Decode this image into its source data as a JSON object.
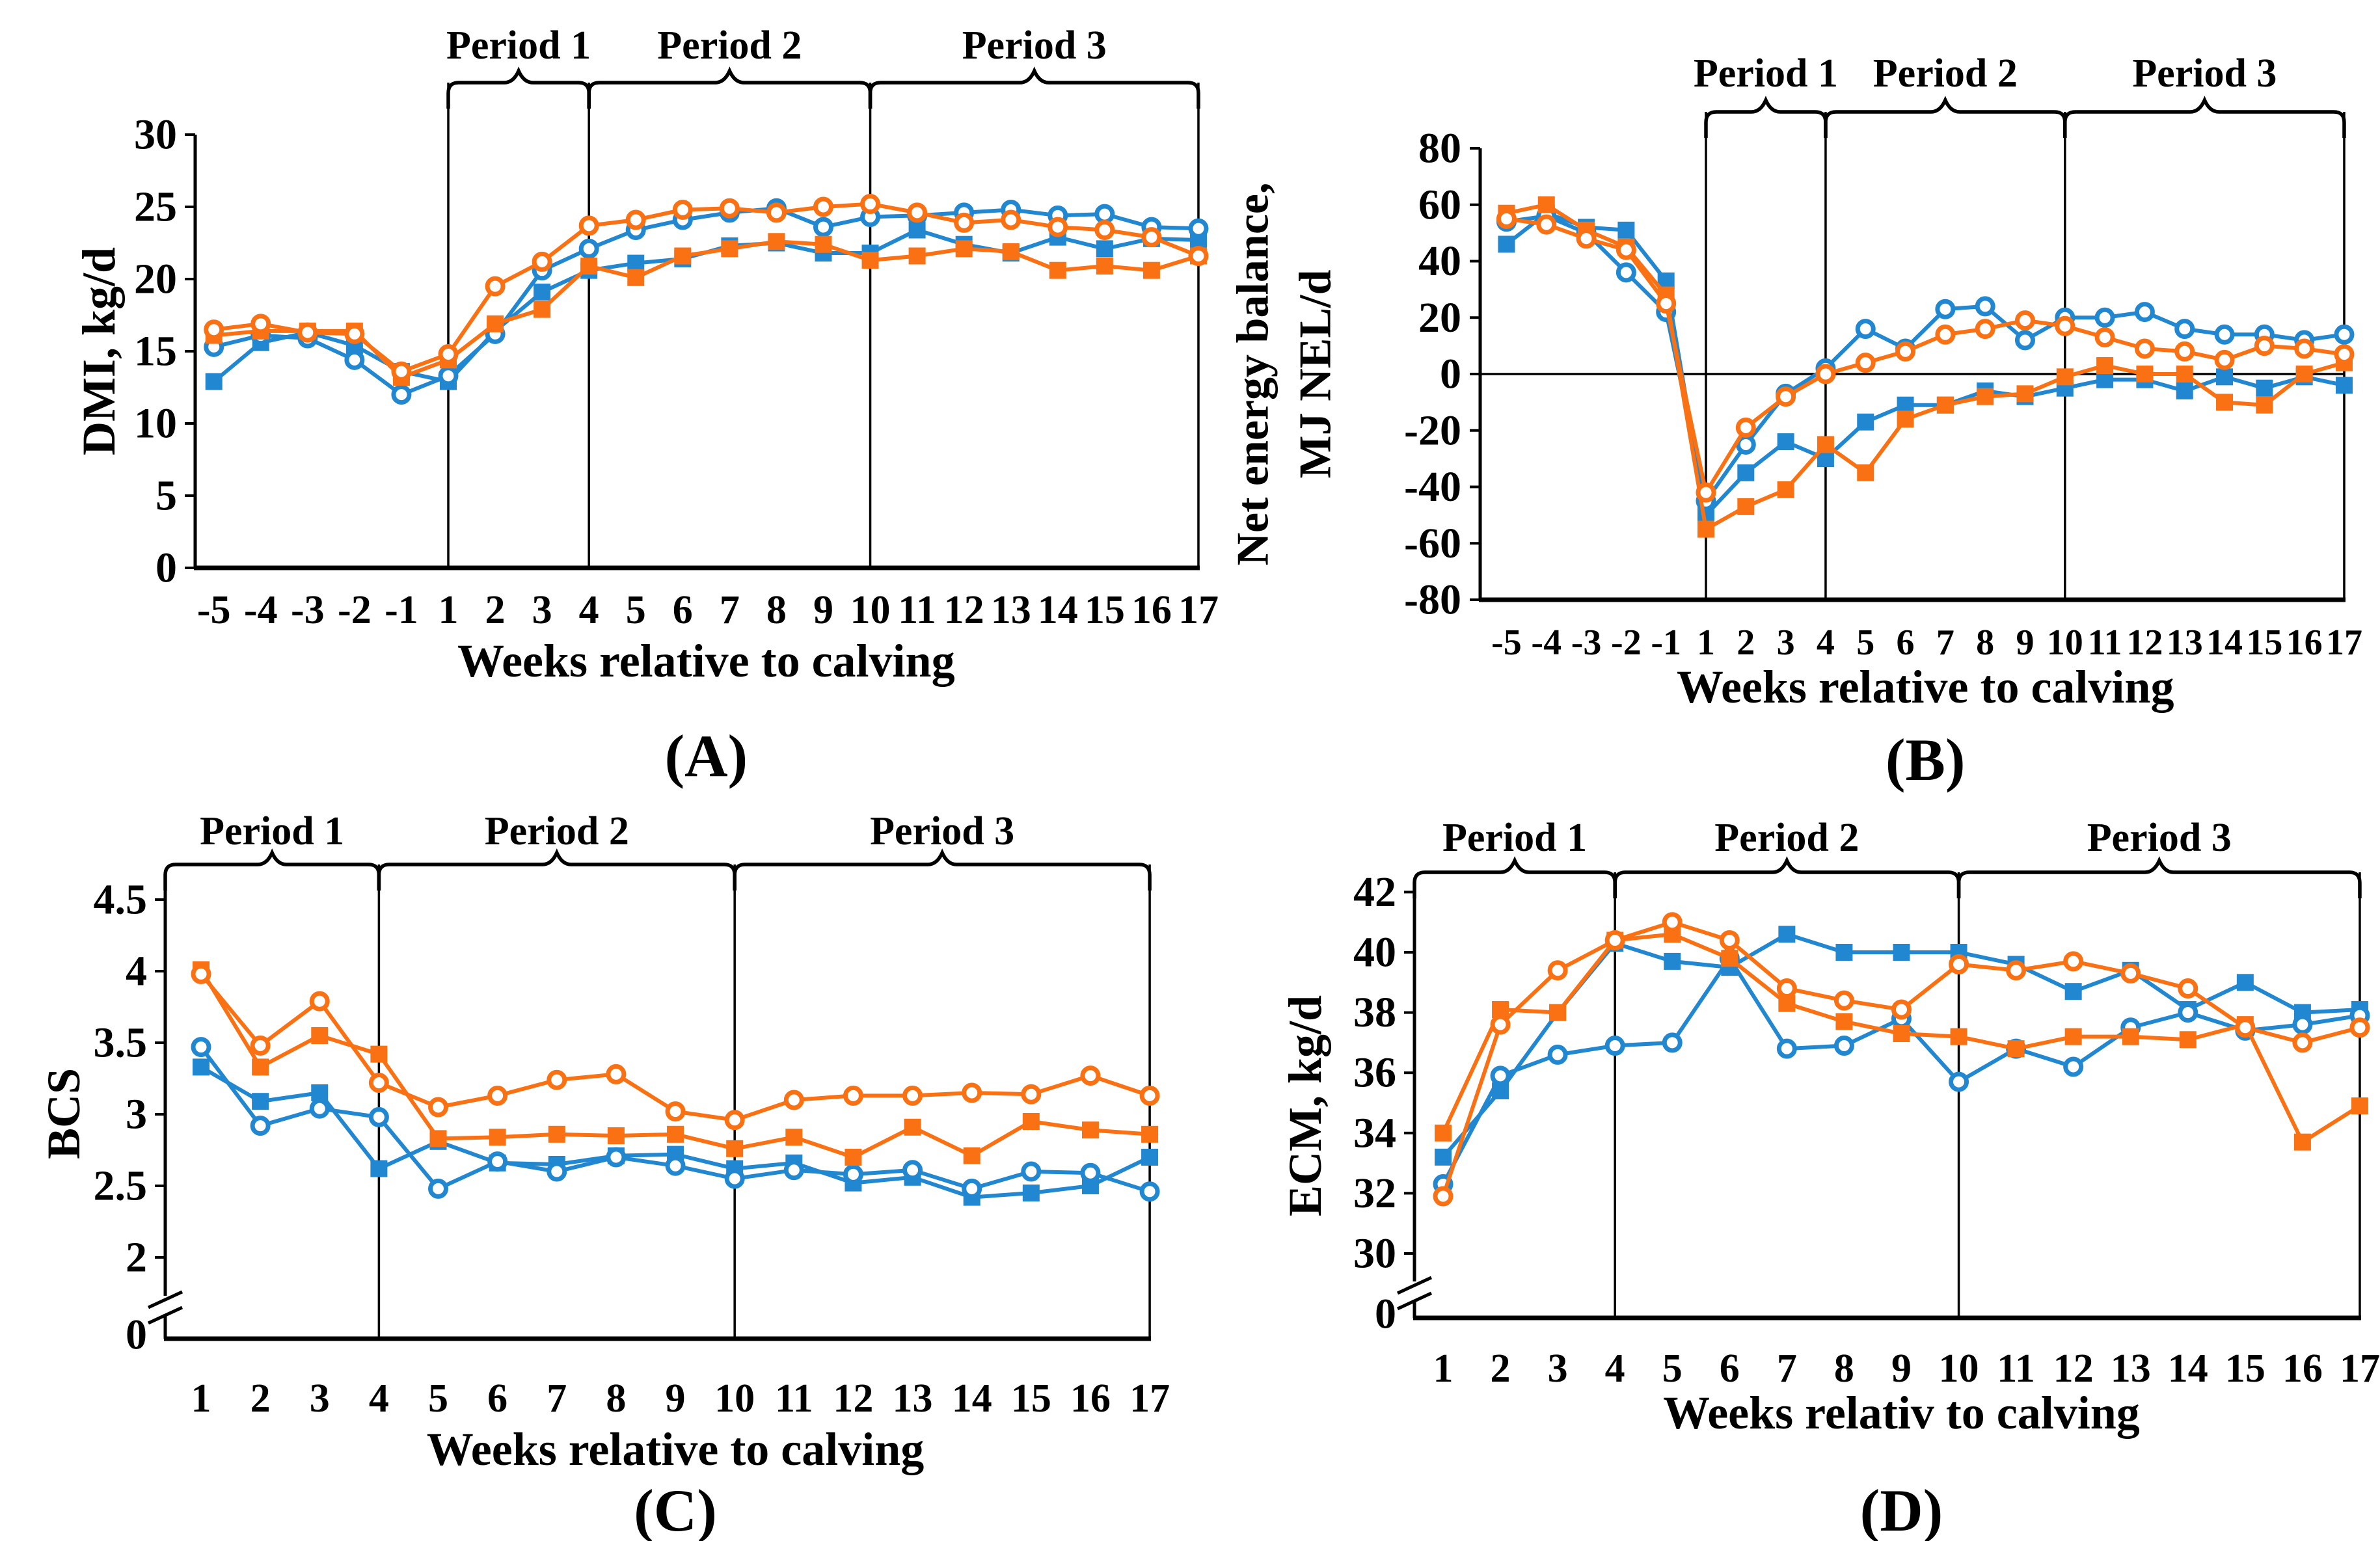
{
  "figure": {
    "background": "#ffffff",
    "palette": {
      "orange": "#FA7113",
      "blue": "#2187D0",
      "axis": "#000000"
    },
    "period_labels": [
      "Period 1",
      "Period 2",
      "Period 3"
    ]
  },
  "chart_data": [
    {
      "id": "A",
      "type": "line",
      "panel_label": "(A)",
      "ylabel": "DMI, kg/d",
      "xlabel": "Weeks relative to calving",
      "x": [
        -5,
        -4,
        -3,
        -2,
        -1,
        1,
        2,
        3,
        4,
        5,
        6,
        7,
        8,
        9,
        10,
        11,
        12,
        13,
        14,
        15,
        16,
        17
      ],
      "yticks": [
        0,
        5,
        10,
        15,
        20,
        25,
        30
      ],
      "ylim": [
        0,
        30
      ],
      "axis_break": false,
      "zero_line": false,
      "vlines_weeks": [
        1,
        4,
        10,
        17
      ],
      "periods": [
        {
          "label": "Period 1",
          "from_week": 1,
          "to_week": 4
        },
        {
          "label": "Period 2",
          "from_week": 4,
          "to_week": 10
        },
        {
          "label": "Period 3",
          "from_week": 10,
          "to_week": 17
        }
      ],
      "series": [
        {
          "name": "blue-square",
          "color": "blue",
          "marker": "square",
          "values": [
            12.9,
            15.6,
            16.3,
            15.4,
            13.6,
            12.9,
            16.4,
            19.1,
            20.6,
            21.1,
            21.4,
            22.3,
            22.5,
            21.8,
            21.8,
            23.4,
            22.4,
            21.8,
            22.9,
            22.1,
            22.8,
            22.7
          ]
        },
        {
          "name": "blue-circle",
          "color": "blue",
          "marker": "circle",
          "values": [
            15.3,
            16.1,
            15.9,
            14.4,
            12.0,
            13.3,
            16.2,
            20.6,
            22.1,
            23.4,
            24.1,
            24.6,
            24.9,
            23.6,
            24.3,
            24.4,
            24.6,
            24.8,
            24.4,
            24.5,
            23.6,
            23.5
          ]
        },
        {
          "name": "orange-square",
          "color": "orange",
          "marker": "square",
          "values": [
            16.1,
            16.4,
            16.4,
            16.4,
            13.2,
            14.4,
            16.9,
            17.9,
            20.9,
            20.1,
            21.6,
            22.1,
            22.6,
            22.4,
            21.3,
            21.6,
            22.1,
            21.9,
            20.6,
            20.9,
            20.6,
            21.6
          ]
        },
        {
          "name": "orange-circle",
          "color": "orange",
          "marker": "circle",
          "values": [
            16.5,
            16.9,
            16.3,
            16.2,
            13.6,
            14.8,
            19.5,
            21.2,
            23.7,
            24.1,
            24.8,
            24.9,
            24.6,
            25.0,
            25.2,
            24.6,
            23.9,
            24.1,
            23.6,
            23.4,
            22.9,
            21.6
          ]
        }
      ]
    },
    {
      "id": "B",
      "type": "line",
      "panel_label": "(B)",
      "ylabel_lines": [
        "Net energy balance,",
        "MJ NEL/d"
      ],
      "xlabel": "Weeks relative to calving",
      "x": [
        -5,
        -4,
        -3,
        -2,
        -1,
        1,
        2,
        3,
        4,
        5,
        6,
        7,
        8,
        9,
        10,
        11,
        12,
        13,
        14,
        15,
        16,
        17
      ],
      "yticks": [
        -80,
        -60,
        -40,
        -20,
        0,
        20,
        40,
        60,
        80
      ],
      "ylim": [
        -80,
        80
      ],
      "axis_break": false,
      "zero_line": true,
      "vlines_weeks": [
        1,
        4,
        10,
        17
      ],
      "periods": [
        {
          "label": "Period 1",
          "from_week": 1,
          "to_week": 4
        },
        {
          "label": "Period 2",
          "from_week": 4,
          "to_week": 10
        },
        {
          "label": "Period 3",
          "from_week": 10,
          "to_week": 17
        }
      ],
      "series": [
        {
          "name": "blue-square",
          "color": "blue",
          "marker": "square",
          "values": [
            46,
            57,
            52,
            51,
            33,
            -50,
            -35,
            -24,
            -30,
            -17,
            -11,
            -11,
            -6,
            -8,
            -5,
            -2,
            -2,
            -6,
            -1,
            -5,
            -1,
            -4
          ]
        },
        {
          "name": "blue-circle",
          "color": "blue",
          "marker": "circle",
          "values": [
            54,
            56,
            50,
            36,
            22,
            -45,
            -25,
            -7,
            2,
            16,
            9,
            23,
            24,
            12,
            20,
            20,
            22,
            16,
            14,
            14,
            12,
            14
          ]
        },
        {
          "name": "orange-square",
          "color": "orange",
          "marker": "square",
          "values": [
            57,
            60,
            51,
            45,
            28,
            -55,
            -47,
            -41,
            -25,
            -35,
            -16,
            -11,
            -8,
            -7,
            -1,
            3,
            0,
            0,
            -10,
            -11,
            0,
            4
          ]
        },
        {
          "name": "orange-circle",
          "color": "orange",
          "marker": "circle",
          "values": [
            55,
            53,
            48,
            44,
            25,
            -42,
            -19,
            -8,
            0,
            4,
            8,
            14,
            16,
            19,
            17,
            13,
            9,
            8,
            5,
            10,
            9,
            7
          ]
        }
      ]
    },
    {
      "id": "C",
      "type": "line",
      "panel_label": "(C)",
      "ylabel": "BCS",
      "xlabel": "Weeks relative to calving",
      "x": [
        1,
        2,
        3,
        4,
        5,
        6,
        7,
        8,
        9,
        10,
        11,
        12,
        13,
        14,
        15,
        16,
        17
      ],
      "yticks": [
        2,
        2.5,
        3,
        3.5,
        4,
        4.5
      ],
      "zero_tick_label": "0",
      "ylim": [
        2,
        4.5
      ],
      "axis_break": true,
      "zero_line": false,
      "vlines_weeks": [
        4,
        10,
        17
      ],
      "periods": [
        {
          "label": "Period 1",
          "from_week": null,
          "to_week": 4
        },
        {
          "label": "Period 2",
          "from_week": 4,
          "to_week": 10
        },
        {
          "label": "Period 3",
          "from_week": 10,
          "to_week": 17
        }
      ],
      "series": [
        {
          "name": "blue-square",
          "color": "blue",
          "marker": "square",
          "values": [
            3.33,
            3.09,
            3.15,
            2.62,
            2.81,
            2.66,
            2.65,
            2.71,
            2.72,
            2.62,
            2.66,
            2.52,
            2.56,
            2.42,
            2.45,
            2.5,
            2.7
          ]
        },
        {
          "name": "blue-circle",
          "color": "blue",
          "marker": "circle",
          "values": [
            3.47,
            2.92,
            3.04,
            2.98,
            2.48,
            2.67,
            2.6,
            2.7,
            2.64,
            2.55,
            2.61,
            2.58,
            2.61,
            2.48,
            2.6,
            2.59,
            2.46
          ]
        },
        {
          "name": "orange-square",
          "color": "orange",
          "marker": "square",
          "values": [
            4.01,
            3.33,
            3.55,
            3.42,
            2.83,
            2.84,
            2.86,
            2.85,
            2.86,
            2.76,
            2.84,
            2.7,
            2.91,
            2.71,
            2.95,
            2.89,
            2.86
          ]
        },
        {
          "name": "orange-circle",
          "color": "orange",
          "marker": "circle",
          "values": [
            3.98,
            3.48,
            3.79,
            3.22,
            3.05,
            3.13,
            3.24,
            3.28,
            3.02,
            2.96,
            3.1,
            3.13,
            3.13,
            3.15,
            3.14,
            3.27,
            3.13
          ]
        }
      ]
    },
    {
      "id": "D",
      "type": "line",
      "panel_label": "(D)",
      "ylabel": "ECM, kg/d",
      "xlabel": "Weeks relativ to calving",
      "x": [
        1,
        2,
        3,
        4,
        5,
        6,
        7,
        8,
        9,
        10,
        11,
        12,
        13,
        14,
        15,
        16,
        17
      ],
      "yticks": [
        30,
        32,
        34,
        36,
        38,
        40,
        42
      ],
      "zero_tick_label": "0",
      "ylim": [
        30,
        42
      ],
      "axis_break": true,
      "zero_line": false,
      "vlines_weeks": [
        4,
        10,
        17
      ],
      "periods": [
        {
          "label": "Period 1",
          "from_week": null,
          "to_week": 4
        },
        {
          "label": "Period 2",
          "from_week": 4,
          "to_week": 10
        },
        {
          "label": "Period 3",
          "from_week": 10,
          "to_week": 17
        }
      ],
      "series": [
        {
          "name": "blue-square",
          "color": "blue",
          "marker": "square",
          "values": [
            33.2,
            35.4,
            38.0,
            40.3,
            39.7,
            39.5,
            40.6,
            40.0,
            40.0,
            40.0,
            39.6,
            38.7,
            39.4,
            38.1,
            39.0,
            38.0,
            38.1
          ]
        },
        {
          "name": "blue-circle",
          "color": "blue",
          "marker": "circle",
          "values": [
            32.3,
            35.9,
            36.6,
            36.9,
            37.0,
            39.8,
            36.8,
            36.9,
            37.8,
            35.7,
            36.8,
            36.2,
            37.5,
            38.0,
            37.4,
            37.6,
            37.9
          ]
        },
        {
          "name": "orange-square",
          "color": "orange",
          "marker": "square",
          "values": [
            34.0,
            38.1,
            38.0,
            40.4,
            40.6,
            39.8,
            38.3,
            37.7,
            37.3,
            37.2,
            36.8,
            37.2,
            37.2,
            37.1,
            37.6,
            33.7,
            34.9
          ]
        },
        {
          "name": "orange-circle",
          "color": "orange",
          "marker": "circle",
          "values": [
            31.9,
            37.6,
            39.4,
            40.4,
            41.0,
            40.4,
            38.8,
            38.4,
            38.1,
            39.6,
            39.4,
            39.7,
            39.3,
            38.8,
            37.5,
            37.0,
            37.5
          ]
        }
      ]
    }
  ]
}
